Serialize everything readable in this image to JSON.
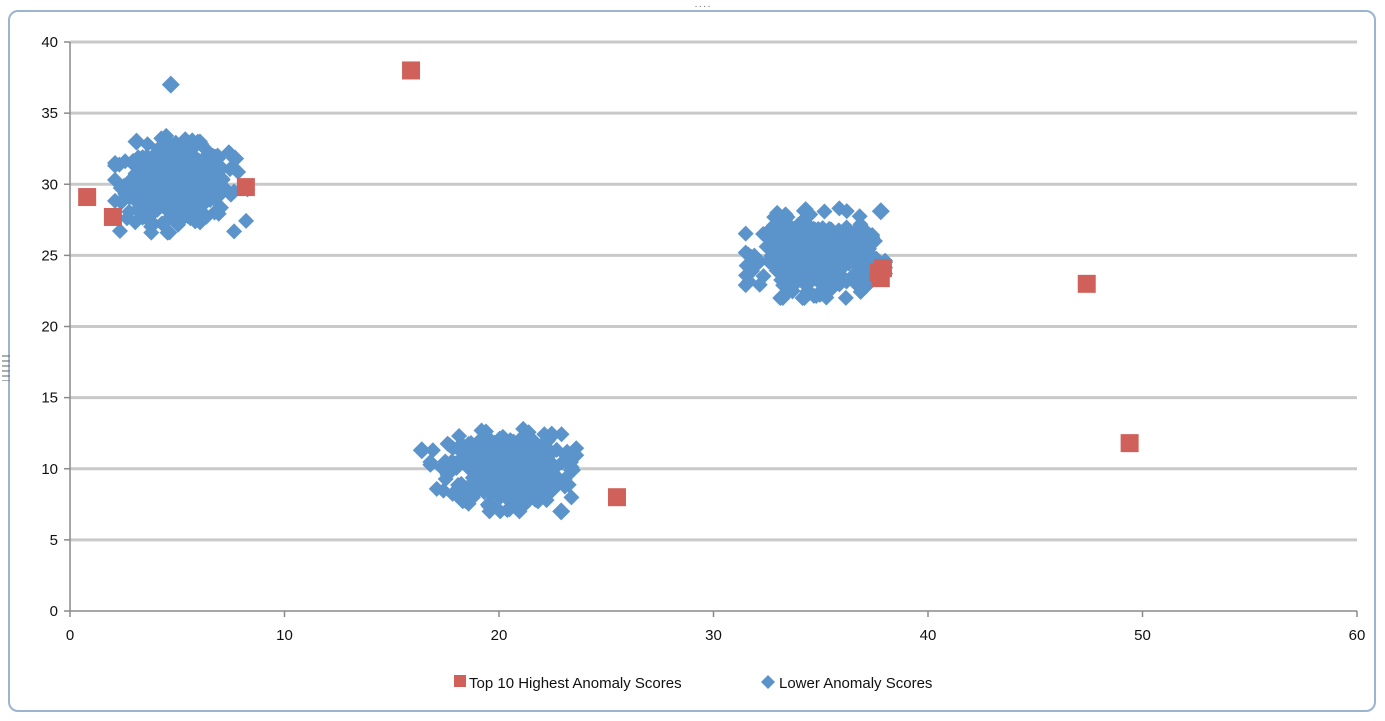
{
  "chart_data": {
    "type": "scatter",
    "title": "",
    "xlabel": "",
    "ylabel": "",
    "xlim": [
      0,
      60
    ],
    "ylim": [
      0,
      40
    ],
    "x_ticks": [
      0,
      10,
      20,
      30,
      40,
      50,
      60
    ],
    "y_ticks": [
      0,
      5,
      10,
      15,
      20,
      25,
      30,
      35,
      40
    ],
    "grid": "horizontal",
    "legend_position": "bottom",
    "series": [
      {
        "name": "Top 10 Highest Anomaly Scores",
        "marker": "square",
        "color": "#d0605a",
        "points": [
          {
            "x": 0.8,
            "y": 29.1
          },
          {
            "x": 2.0,
            "y": 27.7
          },
          {
            "x": 8.2,
            "y": 29.8
          },
          {
            "x": 15.9,
            "y": 38.0
          },
          {
            "x": 25.5,
            "y": 8.0
          },
          {
            "x": 37.8,
            "y": 23.4
          },
          {
            "x": 37.9,
            "y": 24.1
          },
          {
            "x": 47.4,
            "y": 23.0
          },
          {
            "x": 49.4,
            "y": 11.8
          },
          {
            "x": 37.7,
            "y": 23.8
          }
        ]
      },
      {
        "name": "Lower Anomaly Scores",
        "marker": "diamond",
        "color": "#5b93cb",
        "outliers": [
          {
            "x": 4.7,
            "y": 37.0
          },
          {
            "x": 16.4,
            "y": 11.3
          },
          {
            "x": 22.9,
            "y": 7.0
          },
          {
            "x": 37.8,
            "y": 28.1
          },
          {
            "x": 23.4,
            "y": 9.9
          },
          {
            "x": 3.1,
            "y": 33.0
          },
          {
            "x": 7.7,
            "y": 31.8
          }
        ],
        "clusters": [
          {
            "center_x": 5.0,
            "center_y": 30.0,
            "x_range": [
              2.1,
              8.3
            ],
            "y_range": [
              26.6,
              33.4
            ],
            "approx_points": 500
          },
          {
            "center_x": 20.3,
            "center_y": 10.0,
            "x_range": [
              16.8,
              23.6
            ],
            "y_range": [
              7.0,
              13.3
            ],
            "approx_points": 500
          },
          {
            "center_x": 34.8,
            "center_y": 25.0,
            "x_range": [
              31.5,
              38.0
            ],
            "y_range": [
              22.0,
              28.3
            ],
            "approx_points": 500
          }
        ]
      }
    ]
  }
}
